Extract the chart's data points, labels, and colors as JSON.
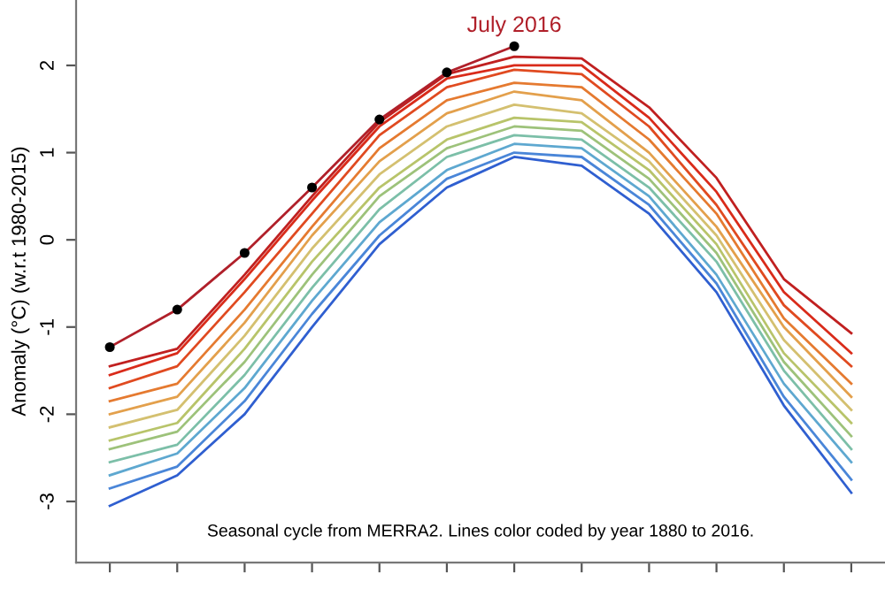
{
  "chart_data": {
    "type": "line",
    "ylabel": "Anomaly (°C) (w.r.t 1980-2015)",
    "categories": [
      null,
      null,
      null,
      null,
      null,
      null,
      null,
      null,
      null,
      null,
      null,
      null
    ],
    "ylim": [
      -3.7,
      2.75
    ],
    "yticks": [
      -3,
      -2,
      -1,
      0,
      1,
      2
    ],
    "tick_labels": "y",
    "grid": false,
    "legend": false,
    "marker": "none",
    "line_style": "solid",
    "series": [
      {
        "color": "#2f5fd0",
        "values": [
          -3.05,
          -2.7,
          -2.0,
          -1.0,
          -0.05,
          0.6,
          0.95,
          0.85,
          0.3,
          -0.6,
          -1.9,
          -2.9
        ]
      },
      {
        "color": "#4a86d8",
        "values": [
          -2.85,
          -2.6,
          -1.85,
          -0.85,
          0.05,
          0.7,
          1.0,
          0.95,
          0.4,
          -0.5,
          -1.8,
          -2.75
        ]
      },
      {
        "color": "#5ea8d0",
        "values": [
          -2.7,
          -2.45,
          -1.7,
          -0.7,
          0.2,
          0.8,
          1.1,
          1.05,
          0.5,
          -0.4,
          -1.65,
          -2.55
        ]
      },
      {
        "color": "#7cbfa8",
        "values": [
          -2.55,
          -2.35,
          -1.55,
          -0.55,
          0.35,
          0.95,
          1.2,
          1.15,
          0.6,
          -0.25,
          -1.5,
          -2.4
        ]
      },
      {
        "color": "#9dc27a",
        "values": [
          -2.4,
          -2.2,
          -1.4,
          -0.4,
          0.5,
          1.05,
          1.3,
          1.25,
          0.7,
          -0.15,
          -1.4,
          -2.25
        ]
      },
      {
        "color": "#b8c46a",
        "values": [
          -2.3,
          -2.1,
          -1.25,
          -0.25,
          0.6,
          1.15,
          1.4,
          1.35,
          0.8,
          -0.05,
          -1.3,
          -2.1
        ]
      },
      {
        "color": "#d4c070",
        "values": [
          -2.15,
          -1.95,
          -1.1,
          -0.1,
          0.75,
          1.3,
          1.55,
          1.45,
          0.9,
          0.05,
          -1.15,
          -1.95
        ]
      },
      {
        "color": "#e3a04c",
        "values": [
          -2.0,
          -1.8,
          -0.95,
          0.05,
          0.9,
          1.45,
          1.7,
          1.6,
          1.0,
          0.15,
          -1.0,
          -1.8
        ]
      },
      {
        "color": "#e57a30",
        "values": [
          -1.85,
          -1.65,
          -0.8,
          0.15,
          1.05,
          1.6,
          1.8,
          1.75,
          1.15,
          0.3,
          -0.9,
          -1.65
        ]
      },
      {
        "color": "#e04a20",
        "values": [
          -1.7,
          -1.45,
          -0.6,
          0.3,
          1.2,
          1.75,
          1.95,
          1.9,
          1.3,
          0.4,
          -0.75,
          -1.45
        ]
      },
      {
        "color": "#d92b1a",
        "values": [
          -1.55,
          -1.3,
          -0.45,
          0.45,
          1.3,
          1.85,
          2.0,
          2.0,
          1.4,
          0.55,
          -0.6,
          -1.3
        ]
      },
      {
        "color": "#c02020",
        "values": [
          -1.45,
          -1.25,
          -0.4,
          0.5,
          1.35,
          1.9,
          2.1,
          2.08,
          1.52,
          0.71,
          -0.45,
          -1.07
        ]
      },
      {
        "color": "#b0202a",
        "marker": "circle",
        "values": [
          -1.23,
          -0.8,
          -0.15,
          0.6,
          1.38,
          1.92,
          2.22,
          null,
          null,
          null,
          null,
          null
        ]
      }
    ],
    "annotations": [
      {
        "text": "July 2016",
        "y": 2.22
      },
      "Seasonal cycle from MERRA2. Lines color coded by year 1880 to 2016."
    ]
  }
}
